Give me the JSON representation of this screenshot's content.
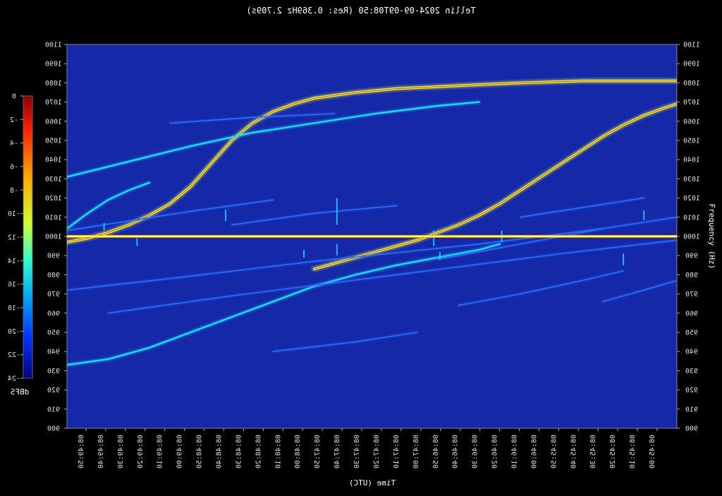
{
  "title": "Tellin 2024-09-09T08:50 (Res: 0.369Hz 2.709s)",
  "chart_data": {
    "type": "heatmap",
    "title": "Tellin 2024-09-09T08:50 (Res: 0.369Hz 2.709s)",
    "xlabel": "Time (UTC)",
    "ylabel": "Frequency (Hz)",
    "ylim": [
      900,
      1100
    ],
    "yticks": [
      900,
      910,
      920,
      930,
      940,
      950,
      960,
      970,
      980,
      990,
      1000,
      1010,
      1020,
      1030,
      1040,
      1050,
      1060,
      1070,
      1080,
      1090,
      1100
    ],
    "xticks": [
      "08:49:50",
      "08:49:40",
      "08:49:30",
      "08:49:20",
      "08:49:10",
      "08:49:00",
      "08:48:50",
      "08:48:40",
      "08:48:30",
      "08:48:20",
      "08:48:10",
      "08:48:00",
      "08:47:50",
      "08:47:40",
      "08:47:30",
      "08:47:20",
      "08:47:10",
      "08:47:00",
      "08:46:50",
      "08:46:40",
      "08:46:30",
      "08:46:20",
      "08:46:10",
      "08:46:00",
      "08:45:50",
      "08:45:40",
      "08:45:30",
      "08:45:20",
      "08:45:10",
      "08:45:00"
    ],
    "xticks_reversed": true,
    "colorbar": {
      "label": "dBFS",
      "range": [
        -24,
        0
      ],
      "ticks": [
        "0",
        "-2",
        "-4",
        "-6",
        "-8",
        "-10",
        "-12",
        "-14",
        "-16",
        "-18",
        "-20",
        "-22",
        "-24"
      ]
    },
    "colors": {
      "background": "#1428a8",
      "weak": "#2c6cff",
      "medium": "#22d8ff",
      "strong": "#e8ff40",
      "peak": "#e02010",
      "carrier": "#ffff66"
    },
    "traces": [
      {
        "intensity": "strong",
        "points": [
          [
            0.0,
            997
          ],
          [
            1.0,
            999
          ],
          [
            2.0,
            1002
          ],
          [
            3.0,
            1006
          ],
          [
            4.0,
            1011
          ],
          [
            5.0,
            1017
          ],
          [
            6.0,
            1026
          ],
          [
            7.0,
            1038
          ],
          [
            8.0,
            1050
          ],
          [
            9.0,
            1059
          ],
          [
            10.0,
            1065
          ],
          [
            11.0,
            1069
          ],
          [
            12.0,
            1072
          ],
          [
            14.0,
            1075
          ],
          [
            16.0,
            1077
          ],
          [
            18.0,
            1078
          ],
          [
            20.0,
            1079
          ],
          [
            22.0,
            1080
          ],
          [
            25.0,
            1081
          ],
          [
            29.6,
            1081
          ]
        ]
      },
      {
        "intensity": "strong",
        "points": [
          [
            12.0,
            983
          ],
          [
            13.0,
            986
          ],
          [
            14.0,
            989
          ],
          [
            15.0,
            992
          ],
          [
            16.0,
            995
          ],
          [
            17.0,
            998
          ],
          [
            18.0,
            1002
          ],
          [
            19.0,
            1006
          ],
          [
            20.0,
            1011
          ],
          [
            21.0,
            1017
          ],
          [
            22.0,
            1024
          ],
          [
            23.0,
            1031
          ],
          [
            24.0,
            1038
          ],
          [
            25.0,
            1045
          ],
          [
            26.0,
            1052
          ],
          [
            27.0,
            1058
          ],
          [
            28.0,
            1063
          ],
          [
            29.0,
            1067
          ],
          [
            29.6,
            1069
          ]
        ]
      },
      {
        "intensity": "medium",
        "points": [
          [
            0.0,
            1004
          ],
          [
            1.0,
            1012
          ],
          [
            2.0,
            1019
          ],
          [
            3.0,
            1024
          ],
          [
            4.0,
            1028
          ]
        ]
      },
      {
        "intensity": "medium",
        "points": [
          [
            0.0,
            1031
          ],
          [
            3.0,
            1039
          ],
          [
            6.0,
            1047
          ],
          [
            9.0,
            1054
          ],
          [
            12.0,
            1059
          ],
          [
            15.0,
            1064
          ],
          [
            18.0,
            1068
          ],
          [
            20.0,
            1070
          ]
        ]
      },
      {
        "intensity": "medium",
        "points": [
          [
            0.0,
            933
          ],
          [
            2.0,
            936
          ],
          [
            4.0,
            942
          ],
          [
            6.0,
            950
          ],
          [
            8.0,
            958
          ],
          [
            10.0,
            966
          ],
          [
            12.0,
            974
          ],
          [
            14.0,
            980
          ],
          [
            16.0,
            985
          ],
          [
            18.0,
            989
          ],
          [
            20.0,
            993
          ],
          [
            21.0,
            996
          ]
        ]
      },
      {
        "intensity": "weak",
        "points": [
          [
            0.0,
            1003
          ],
          [
            6.0,
            1013
          ],
          [
            10.0,
            1019
          ]
        ]
      },
      {
        "intensity": "weak",
        "points": [
          [
            0.0,
            972
          ],
          [
            5.0,
            978
          ],
          [
            12.0,
            987
          ],
          [
            20.0,
            996
          ],
          [
            26.0,
            1004
          ],
          [
            29.6,
            1010
          ]
        ]
      },
      {
        "intensity": "weak",
        "points": [
          [
            2.0,
            960
          ],
          [
            8.0,
            969
          ],
          [
            16.0,
            980
          ],
          [
            24.0,
            991
          ],
          [
            29.6,
            998
          ]
        ]
      },
      {
        "intensity": "weak",
        "points": [
          [
            19.0,
            964
          ],
          [
            22.0,
            970
          ],
          [
            25.0,
            977
          ],
          [
            27.0,
            982
          ]
        ]
      },
      {
        "intensity": "weak",
        "points": [
          [
            26.0,
            966
          ],
          [
            28.0,
            972
          ],
          [
            29.6,
            977
          ]
        ]
      },
      {
        "intensity": "weak",
        "points": [
          [
            5.0,
            1059
          ],
          [
            9.0,
            1062
          ],
          [
            13.0,
            1064
          ]
        ]
      },
      {
        "intensity": "weak",
        "points": [
          [
            18.0,
            988
          ],
          [
            22.0,
            996
          ],
          [
            26.0,
            1004
          ]
        ]
      },
      {
        "intensity": "weak",
        "points": [
          [
            22.0,
            1010
          ],
          [
            25.0,
            1015
          ],
          [
            28.0,
            1020
          ]
        ]
      },
      {
        "intensity": "weak",
        "points": [
          [
            10.0,
            940
          ],
          [
            14.0,
            945
          ],
          [
            17.0,
            950
          ]
        ]
      },
      {
        "intensity": "weak",
        "points": [
          [
            8.0,
            1006
          ],
          [
            12.0,
            1012
          ],
          [
            16.0,
            1016
          ]
        ]
      }
    ],
    "carrier_hz": 1000,
    "spikes": [
      {
        "t": 13.1,
        "hz": 1013,
        "span": 14
      },
      {
        "t": 13.1,
        "hz": 993,
        "span": 6
      },
      {
        "t": 17.8,
        "hz": 999,
        "span": 8
      },
      {
        "t": 18.1,
        "hz": 990,
        "span": 4
      },
      {
        "t": 21.1,
        "hz": 1000,
        "span": 6
      },
      {
        "t": 27.0,
        "hz": 988,
        "span": 6
      },
      {
        "t": 28.0,
        "hz": 1011,
        "span": 5
      },
      {
        "t": 7.7,
        "hz": 1011,
        "span": 6
      },
      {
        "t": 3.4,
        "hz": 997,
        "span": 4
      },
      {
        "t": 1.8,
        "hz": 1005,
        "span": 4
      },
      {
        "t": 11.5,
        "hz": 991,
        "span": 4
      }
    ]
  }
}
